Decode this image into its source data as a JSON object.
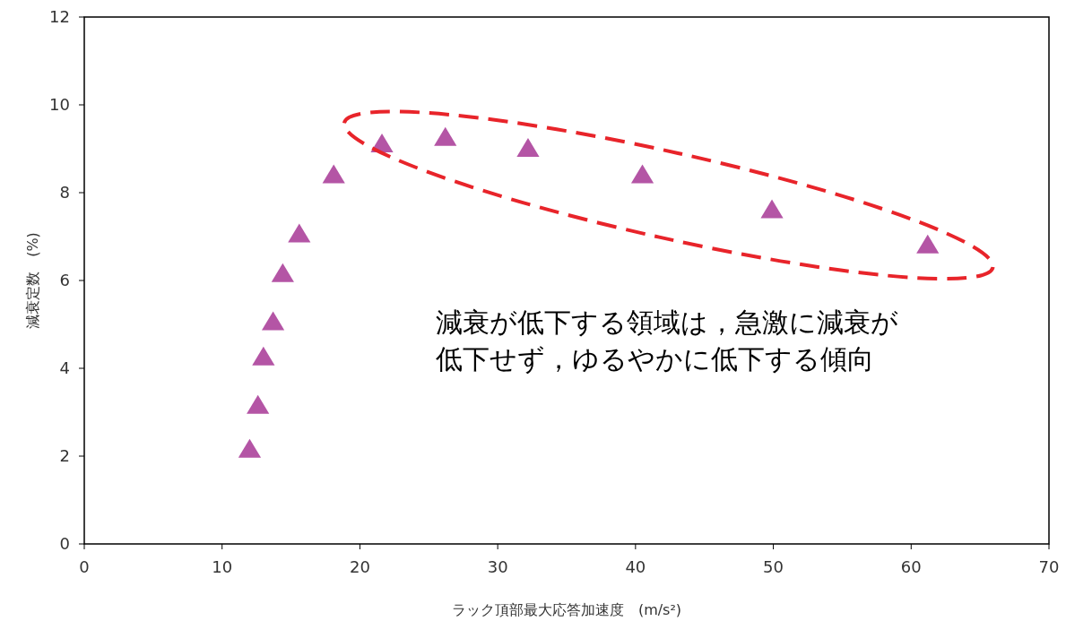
{
  "chart_data": {
    "type": "scatter",
    "xlabel": "ラック頂部最大応答加速度　(m/s²)",
    "ylabel": "減衰定数　(%)",
    "x": [
      12.0,
      12.6,
      13.0,
      13.7,
      14.4,
      15.6,
      18.1,
      21.6,
      26.2,
      32.2,
      40.5,
      49.9,
      61.2
    ],
    "series": [
      {
        "color": "#b455a5",
        "values": [
          2.15,
          3.15,
          4.25,
          5.05,
          6.15,
          7.05,
          8.4,
          9.1,
          9.25,
          9.0,
          8.4,
          7.6,
          6.8
        ]
      }
    ],
    "xlim": [
      0,
      70
    ],
    "xticks": [
      0,
      10,
      20,
      30,
      40,
      50,
      60,
      70
    ],
    "ylim": [
      0,
      12
    ],
    "yticks": [
      0,
      2,
      4,
      6,
      8,
      10,
      12
    ],
    "marker": "triangle",
    "grid": false,
    "annotations": [
      "減衰が低下する領域は，急激に減衰が",
      "低下せず，ゆるやかに低下する傾向"
    ]
  }
}
